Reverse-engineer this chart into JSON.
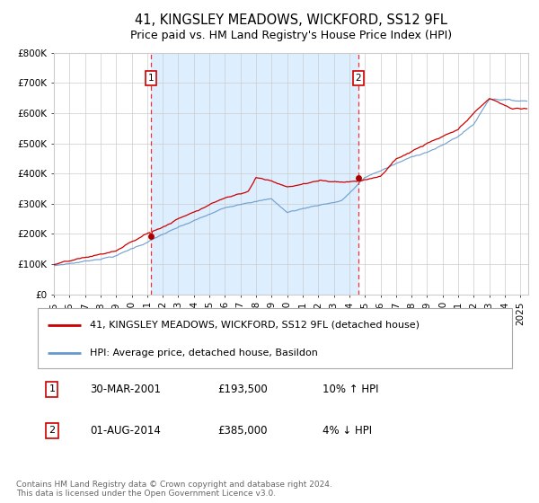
{
  "title": "41, KINGSLEY MEADOWS, WICKFORD, SS12 9FL",
  "subtitle": "Price paid vs. HM Land Registry's House Price Index (HPI)",
  "legend_line1": "41, KINGSLEY MEADOWS, WICKFORD, SS12 9FL (detached house)",
  "legend_line2": "HPI: Average price, detached house, Basildon",
  "annotation1_label": "1",
  "annotation1_date": "30-MAR-2001",
  "annotation1_price": "£193,500",
  "annotation1_hpi": "10% ↑ HPI",
  "annotation1_year": 2001.25,
  "annotation1_value": 193500,
  "annotation2_label": "2",
  "annotation2_date": "01-AUG-2014",
  "annotation2_price": "£385,000",
  "annotation2_hpi": "4% ↓ HPI",
  "annotation2_year": 2014.583,
  "annotation2_value": 385000,
  "footer": "Contains HM Land Registry data © Crown copyright and database right 2024.\nThis data is licensed under the Open Government Licence v3.0.",
  "xlim": [
    1995,
    2025.5
  ],
  "ylim": [
    0,
    800000
  ],
  "yticks": [
    0,
    100000,
    200000,
    300000,
    400000,
    500000,
    600000,
    700000,
    800000
  ],
  "ytick_labels": [
    "£0",
    "£100K",
    "£200K",
    "£300K",
    "£400K",
    "£500K",
    "£600K",
    "£700K",
    "£800K"
  ],
  "xtick_years": [
    1995,
    1996,
    1997,
    1998,
    1999,
    2000,
    2001,
    2002,
    2003,
    2004,
    2005,
    2006,
    2007,
    2008,
    2009,
    2010,
    2011,
    2012,
    2013,
    2014,
    2015,
    2016,
    2017,
    2018,
    2019,
    2020,
    2021,
    2022,
    2023,
    2024,
    2025
  ],
  "red_line_color": "#cc0000",
  "blue_line_color": "#6699cc",
  "shade_color": "#ddeeff",
  "vline_color": "#ee3333",
  "marker_color": "#aa0000",
  "background_color": "#ffffff",
  "grid_color": "#cccccc",
  "title_fontsize": 10.5,
  "subtitle_fontsize": 9,
  "axis_fontsize": 7.5
}
